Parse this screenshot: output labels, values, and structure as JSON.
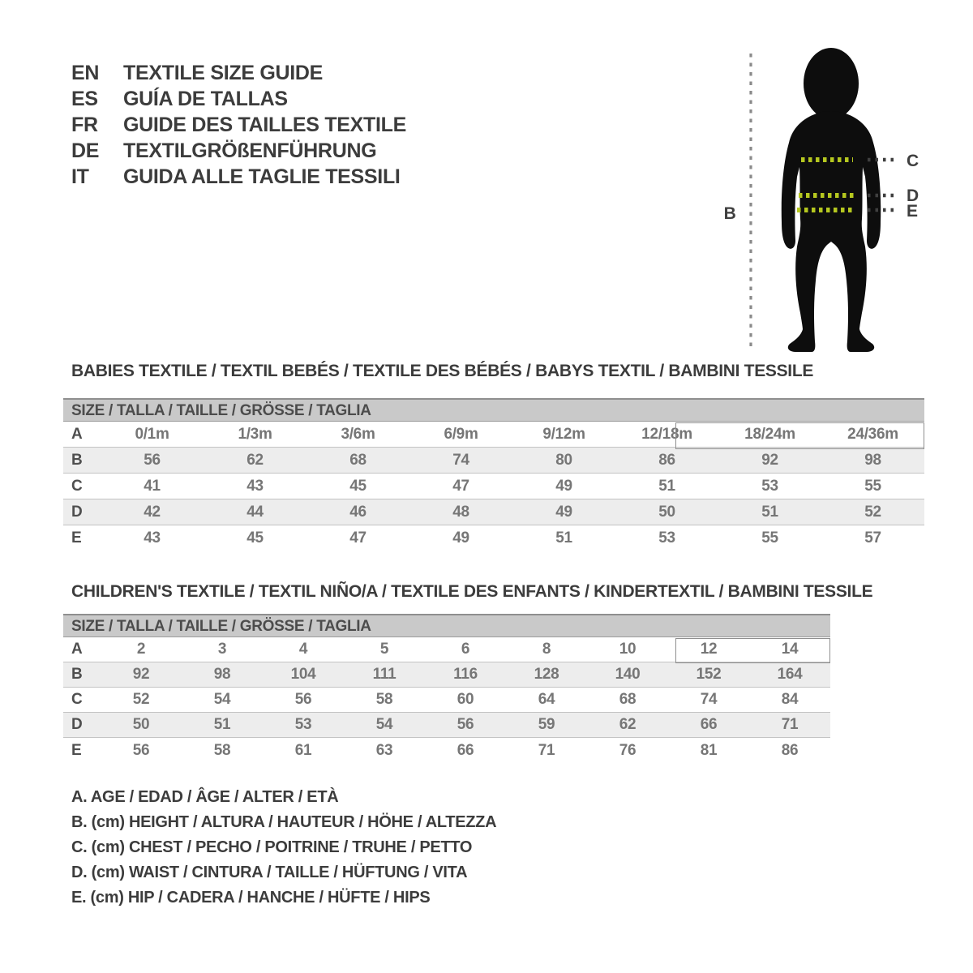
{
  "languages": [
    {
      "code": "EN",
      "label": "TEXTILE SIZE GUIDE"
    },
    {
      "code": "ES",
      "label": "GUÍA DE TALLAS"
    },
    {
      "code": "FR",
      "label": "GUIDE DES TAILLES TEXTILE"
    },
    {
      "code": "DE",
      "label": "TEXTILGRÖßENFÜHRUNG"
    },
    {
      "code": "IT",
      "label": "GUIDA ALLE TAGLIE TESSILI"
    }
  ],
  "figure": {
    "labels": {
      "b": "B",
      "c": "C",
      "d": "D",
      "e": "E"
    },
    "accent_color": "#b5c71f",
    "line_color": "#8a8a8a"
  },
  "babies": {
    "title": "BABIES TEXTILE / TEXTIL BEBÉS / TEXTILE DES BÉBÉS / BABYS TEXTIL / BAMBINI TESSILE",
    "header": "SIZE / TALLA / TAILLE / GRÖSSE / TAGLIA",
    "highlighted_sizes": [
      "18/24m",
      "24/36m"
    ],
    "rows": [
      {
        "label": "A",
        "values": [
          "0/1m",
          "1/3m",
          "3/6m",
          "6/9m",
          "9/12m",
          "12/18m",
          "18/24m",
          "24/36m"
        ]
      },
      {
        "label": "B",
        "values": [
          "56",
          "62",
          "68",
          "74",
          "80",
          "86",
          "92",
          "98"
        ]
      },
      {
        "label": "C",
        "values": [
          "41",
          "43",
          "45",
          "47",
          "49",
          "51",
          "53",
          "55"
        ]
      },
      {
        "label": "D",
        "values": [
          "42",
          "44",
          "46",
          "48",
          "49",
          "50",
          "51",
          "52"
        ]
      },
      {
        "label": "E",
        "values": [
          "43",
          "45",
          "47",
          "49",
          "51",
          "53",
          "55",
          "57"
        ]
      }
    ]
  },
  "children": {
    "title": "CHILDREN'S TEXTILE / TEXTIL NIÑO/A / TEXTILE DES ENFANTS / KINDERTEXTIL / BAMBINI TESSILE",
    "header": "SIZE / TALLA / TAILLE / GRÖSSE / TAGLIA",
    "highlighted_sizes": [
      "12",
      "14"
    ],
    "rows": [
      {
        "label": "A",
        "values": [
          "2",
          "3",
          "4",
          "5",
          "6",
          "8",
          "10",
          "12",
          "14"
        ]
      },
      {
        "label": "B",
        "values": [
          "92",
          "98",
          "104",
          "111",
          "116",
          "128",
          "140",
          "152",
          "164"
        ]
      },
      {
        "label": "C",
        "values": [
          "52",
          "54",
          "56",
          "58",
          "60",
          "64",
          "68",
          "74",
          "84"
        ]
      },
      {
        "label": "D",
        "values": [
          "50",
          "51",
          "53",
          "54",
          "56",
          "59",
          "62",
          "66",
          "71"
        ]
      },
      {
        "label": "E",
        "values": [
          "56",
          "58",
          "61",
          "63",
          "66",
          "71",
          "76",
          "81",
          "86"
        ]
      }
    ]
  },
  "legend": [
    "A. AGE / EDAD / ÂGE / ALTER / ETÀ",
    "B. (cm) HEIGHT / ALTURA / HAUTEUR / HÖHE / ALTEZZA",
    "C. (cm) CHEST / PECHO / POITRINE / TRUHE / PETTO",
    "D. (cm) WAIST / CINTURA / TAILLE / HÜFTUNG / VITA",
    "E. (cm) HIP / CADERA / HANCHE / HÜFTE / HIPS"
  ]
}
